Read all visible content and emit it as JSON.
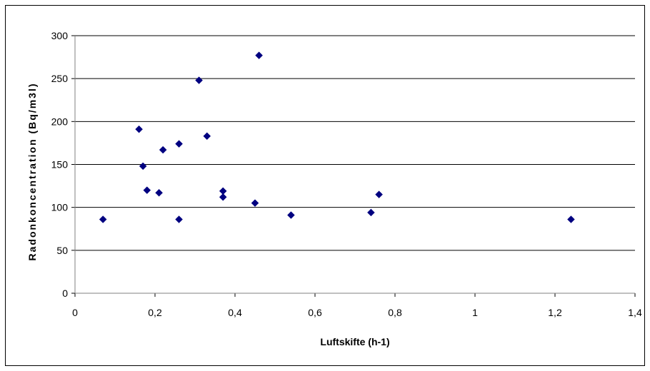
{
  "chart_data": {
    "type": "scatter",
    "title": "",
    "xlabel": "Luftskifte (h-1)",
    "ylabel": "Radonkoncentration  (Bq/m3l)",
    "xlim": [
      0,
      1.4
    ],
    "ylim": [
      0,
      300
    ],
    "x_ticks": [
      "0",
      "0,2",
      "0,4",
      "0,6",
      "0,8",
      "1",
      "1,2",
      "1,4"
    ],
    "y_ticks": [
      "0",
      "50",
      "100",
      "150",
      "200",
      "250",
      "300"
    ],
    "grid": "horizontal",
    "legend": "none",
    "marker": "diamond",
    "color": "#000080",
    "series": [
      {
        "points": [
          {
            "x": 0.07,
            "y": 86
          },
          {
            "x": 0.16,
            "y": 191
          },
          {
            "x": 0.17,
            "y": 148
          },
          {
            "x": 0.18,
            "y": 120
          },
          {
            "x": 0.21,
            "y": 117
          },
          {
            "x": 0.22,
            "y": 167
          },
          {
            "x": 0.26,
            "y": 174
          },
          {
            "x": 0.26,
            "y": 86
          },
          {
            "x": 0.31,
            "y": 248
          },
          {
            "x": 0.33,
            "y": 183
          },
          {
            "x": 0.37,
            "y": 119
          },
          {
            "x": 0.37,
            "y": 112
          },
          {
            "x": 0.45,
            "y": 105
          },
          {
            "x": 0.46,
            "y": 277
          },
          {
            "x": 0.54,
            "y": 91
          },
          {
            "x": 0.74,
            "y": 94
          },
          {
            "x": 0.76,
            "y": 115
          },
          {
            "x": 1.24,
            "y": 86
          }
        ]
      }
    ]
  }
}
